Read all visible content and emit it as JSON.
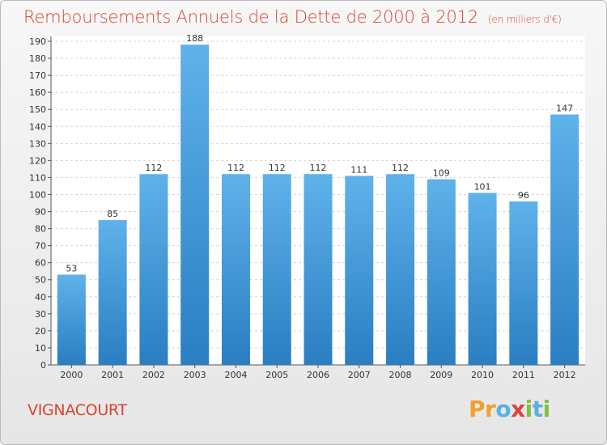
{
  "header": {
    "title": "Remboursements Annuels de la Dette de 2000 à 2012",
    "subtitle": "(en milliers d'€)"
  },
  "footer": {
    "commune": "VIGNACOURT",
    "logo_letters": [
      "P",
      "r",
      "o",
      "x",
      "i",
      "t",
      "i"
    ]
  },
  "colors": {
    "title": "#d8432f",
    "bar_top": "#5fb2ea",
    "bar_bottom": "#2a7ec2"
  },
  "chart_data": {
    "type": "bar",
    "title": "Remboursements Annuels de la Dette de 2000 à 2012",
    "subtitle": "(en milliers d'€)",
    "categories": [
      "2000",
      "2001",
      "2002",
      "2003",
      "2004",
      "2005",
      "2006",
      "2007",
      "2008",
      "2009",
      "2010",
      "2011",
      "2012"
    ],
    "values": [
      53,
      85,
      112,
      188,
      112,
      112,
      112,
      111,
      112,
      109,
      101,
      96,
      147
    ],
    "ylim": [
      0,
      190
    ],
    "yticks": [
      0,
      10,
      20,
      30,
      40,
      50,
      60,
      70,
      80,
      90,
      100,
      110,
      120,
      130,
      140,
      150,
      160,
      170,
      180,
      190
    ],
    "grid": true,
    "data_labels": true
  }
}
